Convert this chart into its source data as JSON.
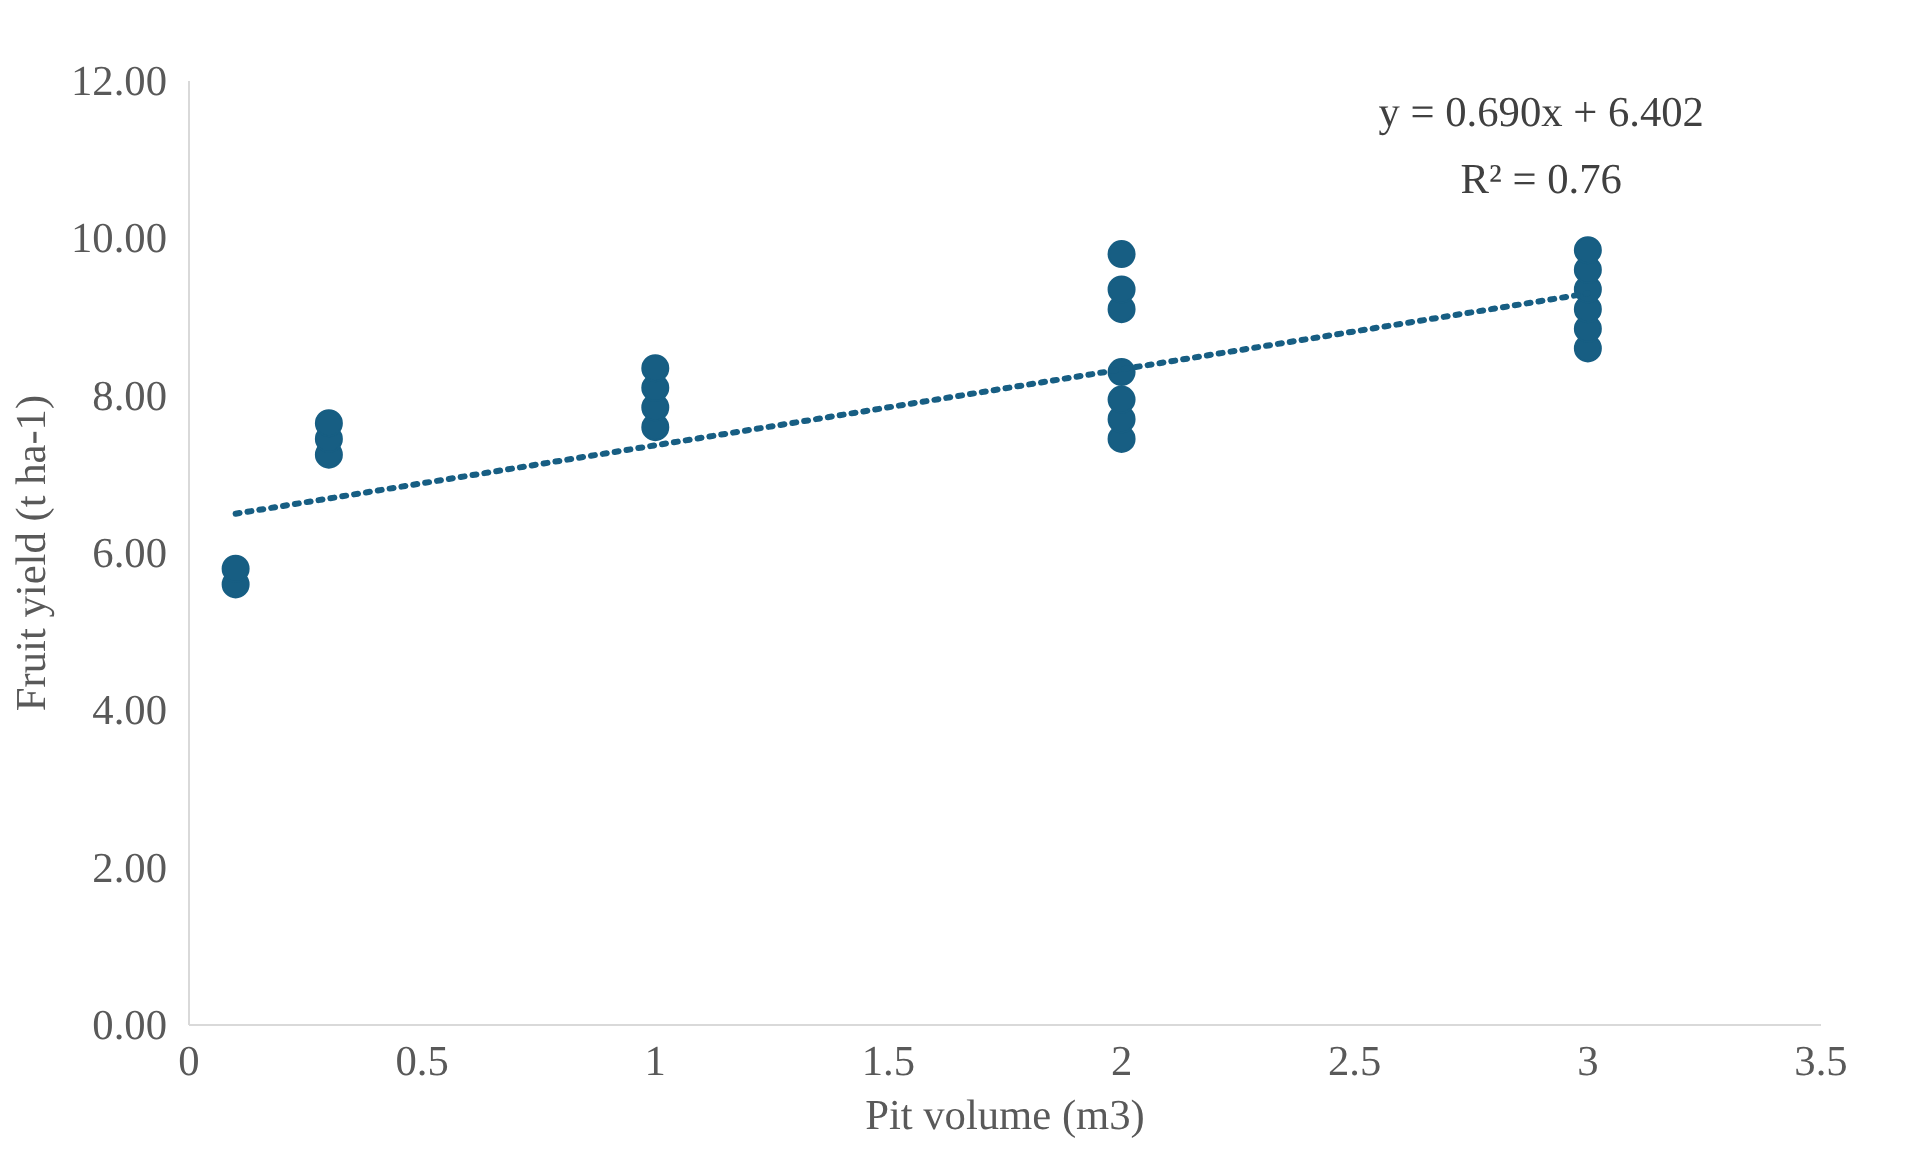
{
  "chart_data": {
    "type": "scatter",
    "xlabel": "Pit volume (m3)",
    "ylabel": "Fruit yield (t ha-1)",
    "xlim": [
      0,
      3.5
    ],
    "xticks": [
      0,
      0.5,
      1,
      1.5,
      2,
      2.5,
      3,
      3.5
    ],
    "ylim": [
      0,
      12
    ],
    "yticks": [
      {
        "value": 0,
        "label": "0.00"
      },
      {
        "value": 2,
        "label": "2.00"
      },
      {
        "value": 4,
        "label": "4.00"
      },
      {
        "value": 6,
        "label": "6.00"
      },
      {
        "value": 8,
        "label": "8.00"
      },
      {
        "value": 10,
        "label": "10.00"
      },
      {
        "value": 12,
        "label": "12.00"
      }
    ],
    "grid": false,
    "marker": "circle",
    "series": [
      {
        "color": "#175e83",
        "x": [
          0.1,
          0.1,
          0.3,
          0.3,
          0.3,
          1,
          1,
          1,
          1,
          2,
          2,
          2,
          2,
          2,
          2,
          2,
          3,
          3,
          3,
          3,
          3,
          3
        ],
        "values": [
          5.6,
          5.8,
          7.25,
          7.45,
          7.65,
          7.6,
          7.85,
          8.1,
          8.35,
          9.1,
          9.35,
          9.8,
          7.45,
          7.7,
          7.95,
          8.3,
          8.6,
          8.85,
          9.1,
          9.35,
          9.6,
          9.85
        ]
      },
      {
        "type": "line",
        "marker": "none",
        "color": "#175e83",
        "line_style": "dotted",
        "x": [
          0.1,
          3
        ],
        "values": [
          6.5,
          9.3
        ]
      }
    ],
    "annotations": [
      "y = 0.690x + 6.402",
      "R² = 0.76"
    ]
  }
}
